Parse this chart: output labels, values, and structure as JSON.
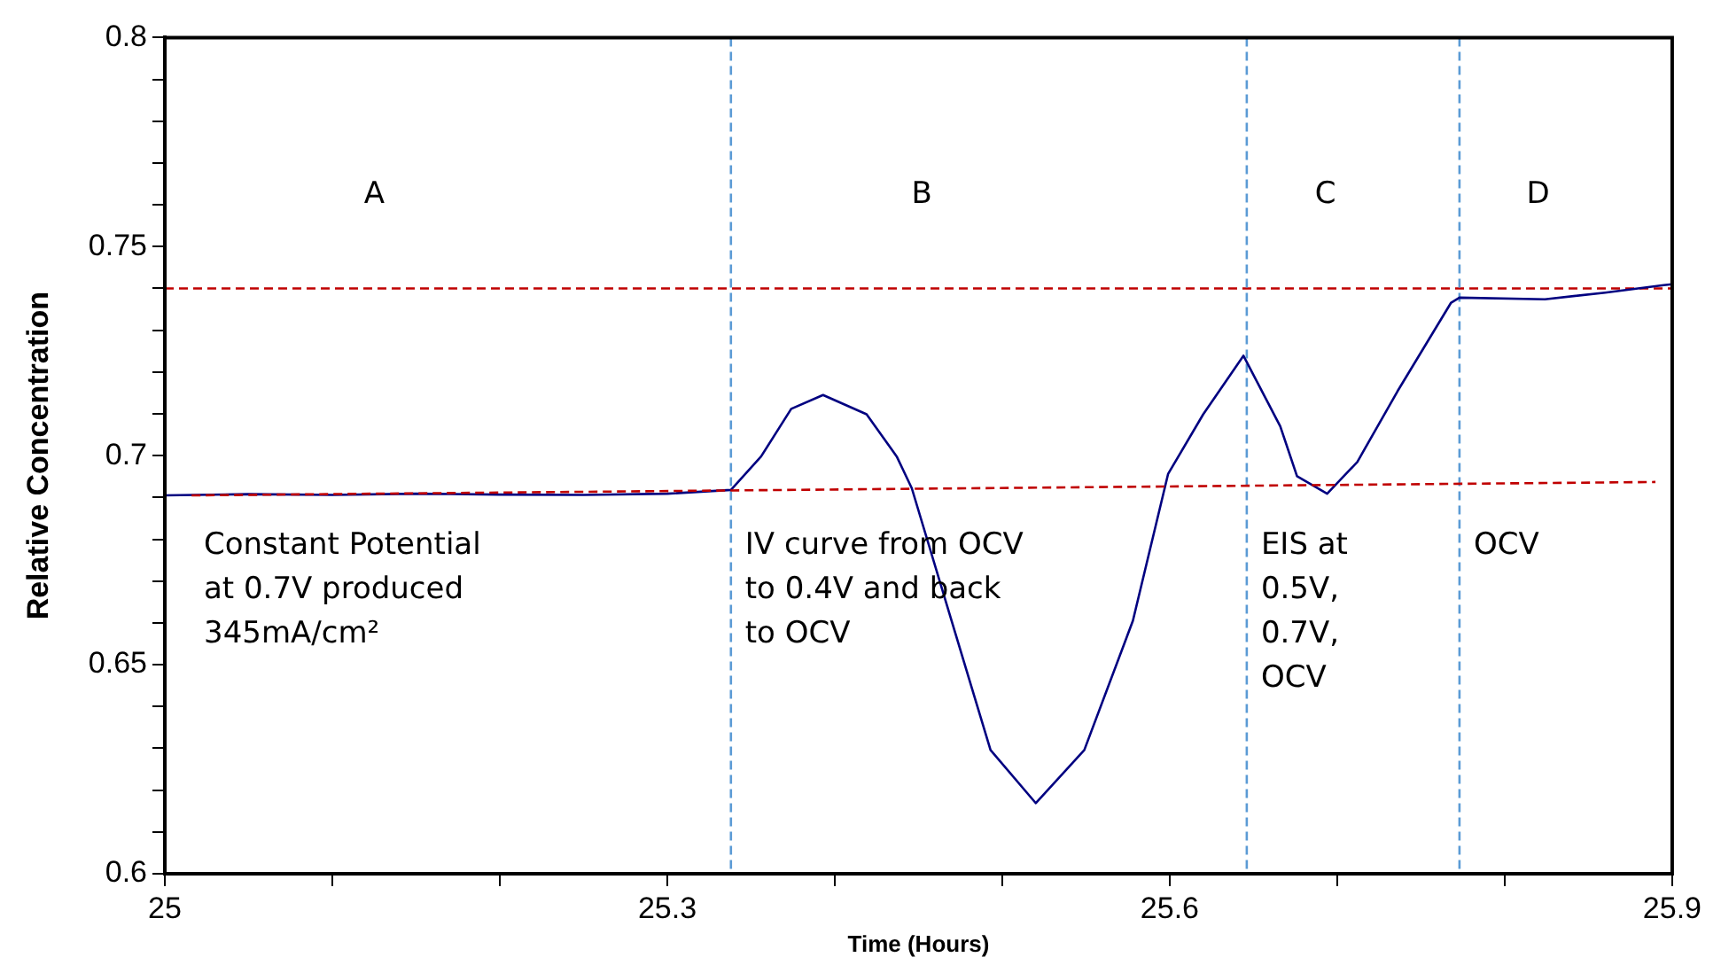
{
  "chart_data": {
    "type": "line",
    "xlabel": "Time (Hours)",
    "ylabel": "Relative Concentration",
    "xlim": [
      25,
      25.9
    ],
    "xticks": [
      25,
      {
        "value": 25.1,
        "label": null
      },
      {
        "value": 25.2,
        "label": null
      },
      25.3,
      {
        "value": 25.4,
        "label": null
      },
      {
        "value": 25.5,
        "label": null
      },
      25.6,
      {
        "value": 25.7,
        "label": null
      },
      {
        "value": 25.8,
        "label": null
      },
      25.9
    ],
    "ylim": [
      0.6,
      0.8
    ],
    "yticks": [
      0.6,
      {
        "value": 0.61,
        "label": null
      },
      {
        "value": 0.62,
        "label": null
      },
      {
        "value": 0.63,
        "label": null
      },
      {
        "value": 0.64,
        "label": null
      },
      0.65,
      {
        "value": 0.66,
        "label": null
      },
      {
        "value": 0.67,
        "label": null
      },
      {
        "value": 0.68,
        "label": null
      },
      {
        "value": 0.69,
        "label": null
      },
      0.7,
      {
        "value": 0.71,
        "label": null
      },
      {
        "value": 0.72,
        "label": null
      },
      {
        "value": 0.73,
        "label": null
      },
      {
        "value": 0.74,
        "label": null
      },
      0.75,
      {
        "value": 0.76,
        "label": null
      },
      {
        "value": 0.77,
        "label": null
      },
      {
        "value": 0.78,
        "label": null
      },
      {
        "value": 0.79,
        "label": null
      },
      0.8
    ],
    "grid": false,
    "legend": false,
    "marker": "none",
    "series": [
      {
        "color": "#000080",
        "line_style": "solid",
        "x": [
          25,
          25.05,
          25.1,
          25.15,
          25.2,
          25.25,
          25.3,
          25.338,
          25.356,
          25.374,
          25.393,
          25.419,
          25.437,
          25.446,
          25.472,
          25.493,
          25.52,
          25.549,
          25.578,
          25.599,
          25.62,
          25.644,
          25.666,
          25.676,
          25.694,
          25.712,
          25.736,
          25.768,
          25.773,
          25.824,
          25.86,
          25.895,
          25.9
        ],
        "values": [
          0.6905,
          0.6908,
          0.6906,
          0.6909,
          0.6907,
          0.6906,
          0.6909,
          0.6918,
          0.6998,
          0.7112,
          0.7145,
          0.7099,
          0.6998,
          0.6922,
          0.6575,
          0.6296,
          0.6169,
          0.6296,
          0.6605,
          0.6956,
          0.7099,
          0.7239,
          0.707,
          0.6951,
          0.6909,
          0.6985,
          0.7154,
          0.7366,
          0.7378,
          0.7374,
          0.739,
          0.7408,
          0.741
        ]
      },
      {
        "color": "#c00000",
        "line_style": "dashed",
        "x": [
          25.016,
          25.89
        ],
        "values": [
          0.6905,
          0.6937
        ]
      }
    ],
    "ref_lines": [
      {
        "axis": "y",
        "value": 0.74,
        "color": "#c00000",
        "line_style": "dashed"
      },
      {
        "axis": "x",
        "value": 25.338,
        "color": "#5b9bd5",
        "line_style": "dashed"
      },
      {
        "axis": "x",
        "value": 25.646,
        "color": "#5b9bd5",
        "line_style": "dashed"
      },
      {
        "axis": "x",
        "value": 25.773,
        "color": "#5b9bd5",
        "line_style": "dashed"
      }
    ],
    "annotations": [
      "A",
      "B",
      "C",
      "D",
      "Constant Potential\nat 0.7V produced\n345mA/cm²",
      "IV curve from OCV\nto 0.4V and back\nto OCV",
      "EIS at\n0.5V,\n0.7V,\nOCV",
      "OCV"
    ]
  }
}
